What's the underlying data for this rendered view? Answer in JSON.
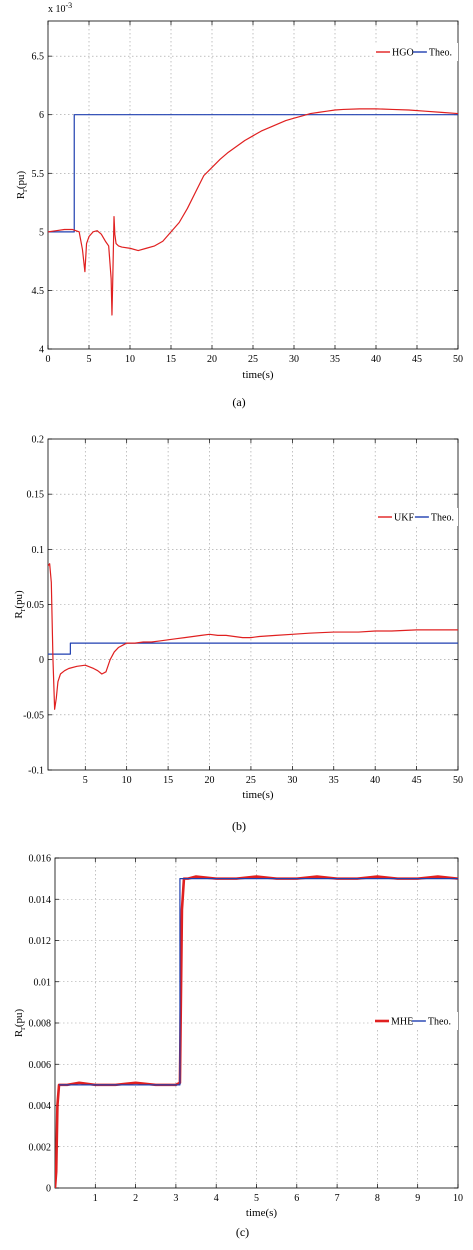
{
  "chart_data": [
    {
      "id": "a",
      "type": "line",
      "caption": "(a)",
      "xlabel": "time(s)",
      "ylabel": "Rr(pu)",
      "ylabel_main": "R",
      "ylabel_sub": "r",
      "ylabel_rest": "(pu)",
      "yscale_note_base": "x 10",
      "yscale_note_exp": "-3",
      "xlim": [
        0,
        50
      ],
      "ylim": [
        4,
        6.8
      ],
      "xticks": [
        0,
        5,
        10,
        15,
        20,
        25,
        30,
        35,
        40,
        45,
        50
      ],
      "xtick_labels": [
        "0",
        "5",
        "10",
        "15",
        "20",
        "25",
        "30",
        "35",
        "40",
        "45",
        "50"
      ],
      "yticks": [
        4,
        4.5,
        5,
        5.5,
        6,
        6.5
      ],
      "ytick_labels": [
        "4",
        "4.5",
        "5",
        "5.5",
        "6",
        "6.5"
      ],
      "grid": true,
      "legend_position": "top-right",
      "series": [
        {
          "name": "HGO",
          "color": "#e02020",
          "x": [
            0,
            1,
            2,
            3,
            3.8,
            4.2,
            4.5,
            4.7,
            5.0,
            5.5,
            6.0,
            6.5,
            7.0,
            7.4,
            7.7,
            7.8,
            7.9,
            8.0,
            8.05,
            8.15,
            8.3,
            8.6,
            9.0,
            10.0,
            11.0,
            12.0,
            13.0,
            14.0,
            15.0,
            16.0,
            17.0,
            18.0,
            19.0,
            20.0,
            21.0,
            22.0,
            23.0,
            24.0,
            25.0,
            26.0,
            27.0,
            28.0,
            29.0,
            30.0,
            31.0,
            32.0,
            33.0,
            34.0,
            35.0,
            36.0,
            38.0,
            40.0,
            42.0,
            44.0,
            46.0,
            48.0,
            50.0
          ],
          "values": [
            5.0,
            5.01,
            5.02,
            5.02,
            5.0,
            4.85,
            4.66,
            4.9,
            4.96,
            5.0,
            5.01,
            4.98,
            4.92,
            4.88,
            4.6,
            4.29,
            4.6,
            4.95,
            5.13,
            4.98,
            4.9,
            4.88,
            4.87,
            4.86,
            4.84,
            4.86,
            4.88,
            4.92,
            5.0,
            5.08,
            5.2,
            5.34,
            5.48,
            5.55,
            5.62,
            5.68,
            5.73,
            5.78,
            5.82,
            5.86,
            5.89,
            5.92,
            5.95,
            5.97,
            5.99,
            6.01,
            6.02,
            6.03,
            6.04,
            6.045,
            6.05,
            6.05,
            6.045,
            6.04,
            6.03,
            6.02,
            6.01
          ]
        },
        {
          "name": "Theo.",
          "color": "#1f3fb0",
          "x": [
            0,
            3.2,
            3.2,
            50
          ],
          "values": [
            5.0,
            5.0,
            6.0,
            6.0
          ]
        }
      ]
    },
    {
      "id": "b",
      "type": "line",
      "caption": "(b)",
      "xlabel": "time(s)",
      "ylabel": "Rr(pu)",
      "ylabel_main": "R",
      "ylabel_sub": "r",
      "ylabel_rest": "(pu)",
      "xlim": [
        0.5,
        50
      ],
      "ylim": [
        -0.1,
        0.2
      ],
      "xticks": [
        5,
        10,
        15,
        20,
        25,
        30,
        35,
        40,
        45,
        50
      ],
      "xtick_labels": [
        "5",
        "10",
        "15",
        "20",
        "25",
        "30",
        "35",
        "40",
        "45",
        "50"
      ],
      "yticks": [
        -0.1,
        -0.05,
        0,
        0.05,
        0.1,
        0.15,
        0.2
      ],
      "ytick_labels": [
        "-0.1",
        "-0.05",
        "0",
        "0.05",
        "0.1",
        "0.15",
        "0.2"
      ],
      "grid": true,
      "legend_position": "top-right",
      "series": [
        {
          "name": "UKF",
          "color": "#e02020",
          "x": [
            0.5,
            0.7,
            0.9,
            1.1,
            1.3,
            1.5,
            1.7,
            2.0,
            2.5,
            3.0,
            4.0,
            5.0,
            6.0,
            6.5,
            7.0,
            7.5,
            8.0,
            8.5,
            9.0,
            9.5,
            10.0,
            11.0,
            12.0,
            13.0,
            14.0,
            15.0,
            16.0,
            17.0,
            18.0,
            19.0,
            20.0,
            21.0,
            22.0,
            23.0,
            24.0,
            25.0,
            26.0,
            28.0,
            30.0,
            32.0,
            35.0,
            38.0,
            40.0,
            42.0,
            45.0,
            48.0,
            50.0
          ],
          "values": [
            0.085,
            0.087,
            0.07,
            0.0,
            -0.045,
            -0.035,
            -0.02,
            -0.013,
            -0.01,
            -0.008,
            -0.006,
            -0.005,
            -0.008,
            -0.01,
            -0.013,
            -0.011,
            0.0,
            0.007,
            0.011,
            0.013,
            0.015,
            0.015,
            0.016,
            0.016,
            0.017,
            0.018,
            0.019,
            0.02,
            0.021,
            0.022,
            0.023,
            0.022,
            0.022,
            0.021,
            0.02,
            0.02,
            0.021,
            0.022,
            0.023,
            0.024,
            0.025,
            0.025,
            0.026,
            0.026,
            0.027,
            0.027,
            0.027
          ]
        },
        {
          "name": "Theo.",
          "color": "#1f3fb0",
          "x": [
            0.5,
            3.2,
            3.2,
            50
          ],
          "values": [
            0.005,
            0.005,
            0.015,
            0.015
          ]
        }
      ]
    },
    {
      "id": "c",
      "type": "line",
      "caption": "(c)",
      "xlabel": "time(s)",
      "ylabel": "Rr(pu)",
      "ylabel_main": "R",
      "ylabel_sub": "r",
      "ylabel_rest": "(pu)",
      "xlim": [
        0,
        10
      ],
      "ylim": [
        0,
        0.016
      ],
      "xticks": [
        1,
        2,
        3,
        4,
        5,
        6,
        7,
        8,
        9,
        10
      ],
      "xtick_labels": [
        "1",
        "2",
        "3",
        "4",
        "5",
        "6",
        "7",
        "8",
        "9",
        "10"
      ],
      "yticks": [
        0,
        0.002,
        0.004,
        0.006,
        0.008,
        0.01,
        0.012,
        0.014,
        0.016
      ],
      "ytick_labels": [
        "0",
        "0.002",
        "0.004",
        "0.006",
        "0.008",
        "0.01",
        "0.012",
        "0.014",
        "0.016"
      ],
      "grid": true,
      "legend_position": "center-right",
      "series": [
        {
          "name": "MHE",
          "color": "#e02020",
          "x": [
            0.0,
            0.03,
            0.06,
            0.1,
            0.3,
            0.6,
            1.0,
            1.5,
            2.0,
            2.5,
            3.0,
            3.1,
            3.12,
            3.15,
            3.2,
            3.3,
            3.5,
            4.0,
            4.5,
            5.0,
            5.5,
            6.0,
            6.5,
            7.0,
            7.5,
            8.0,
            8.5,
            9.0,
            9.5,
            10.0
          ],
          "values": [
            0.0,
            0.0008,
            0.004,
            0.005,
            0.005,
            0.0051,
            0.005,
            0.005,
            0.0051,
            0.005,
            0.005,
            0.0051,
            0.0085,
            0.0135,
            0.015,
            0.015,
            0.0151,
            0.015,
            0.015,
            0.0151,
            0.015,
            0.015,
            0.0151,
            0.015,
            0.015,
            0.0151,
            0.015,
            0.015,
            0.0151,
            0.015
          ]
        },
        {
          "name": "Theo.",
          "color": "#1f3fb0",
          "x": [
            0.1,
            3.1,
            3.1,
            10.0
          ],
          "values": [
            0.005,
            0.005,
            0.015,
            0.015
          ]
        }
      ]
    }
  ]
}
